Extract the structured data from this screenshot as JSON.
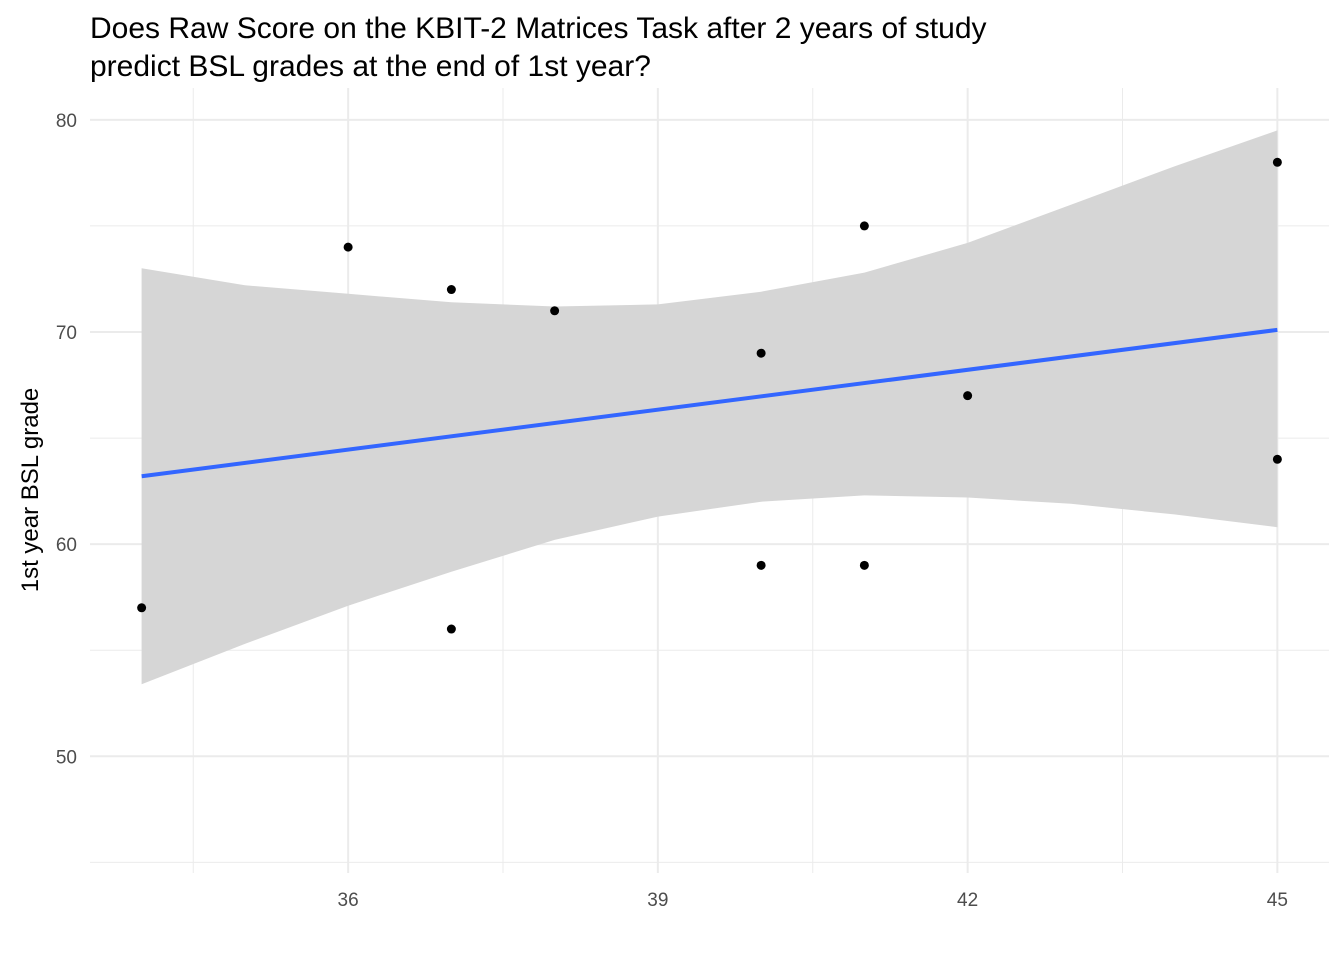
{
  "chart_data": {
    "type": "scatter",
    "title_lines": [
      "Does Raw Score on the KBIT-2 Matrices Task after 2 years of study",
      "predict BSL grades at the end of 1st year?"
    ],
    "xlabel": "",
    "ylabel": "1st year BSL grade",
    "xlim": [
      33.5,
      45.5
    ],
    "ylim": [
      44.5,
      81.5
    ],
    "x_ticks": [
      36,
      39,
      42,
      45
    ],
    "x_minor": [
      34.5,
      37.5,
      40.5,
      43.5
    ],
    "y_ticks": [
      50,
      60,
      70,
      80
    ],
    "y_minor": [
      45,
      55,
      65,
      75
    ],
    "grid": true,
    "points": [
      {
        "x": 34,
        "y": 57
      },
      {
        "x": 36,
        "y": 74
      },
      {
        "x": 37,
        "y": 72
      },
      {
        "x": 37,
        "y": 56
      },
      {
        "x": 38,
        "y": 71
      },
      {
        "x": 40,
        "y": 69
      },
      {
        "x": 40,
        "y": 59
      },
      {
        "x": 41,
        "y": 75
      },
      {
        "x": 41,
        "y": 59
      },
      {
        "x": 42,
        "y": 67
      },
      {
        "x": 45,
        "y": 78
      },
      {
        "x": 45,
        "y": 64
      }
    ],
    "fit_line": {
      "method": "linear",
      "x": [
        34,
        45
      ],
      "y": [
        63.2,
        70.1
      ]
    },
    "confidence_band": {
      "x": [
        34,
        35,
        36,
        37,
        38,
        39,
        40,
        41,
        42,
        43,
        44,
        45
      ],
      "upper": [
        73.0,
        72.2,
        71.8,
        71.4,
        71.2,
        71.3,
        71.9,
        72.8,
        74.2,
        76.0,
        77.8,
        79.5
      ],
      "lower": [
        53.4,
        55.3,
        57.1,
        58.7,
        60.2,
        61.3,
        62.0,
        62.3,
        62.2,
        61.9,
        61.4,
        60.8
      ]
    },
    "colors": {
      "points": "#000000",
      "fit_line": "#3366FF",
      "band": "#D6D6D6",
      "grid": "#EBEBEB",
      "tick_text": "#4D4D4D"
    }
  }
}
